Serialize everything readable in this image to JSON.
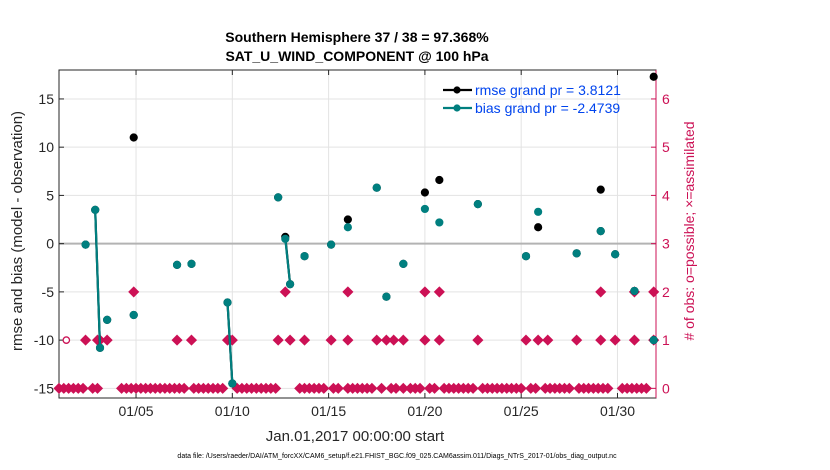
{
  "chart_data": {
    "type": "scatter",
    "title": "Southern Hemisphere 37 / 38 = 97.368%",
    "subtitle": "SAT_U_WIND_COMPONENT @ 100 hPa",
    "xlabel": "Jan.01,2017 00:00:00 start",
    "ylabel": "rmse and bias (model - observation)",
    "y2label": "# of obs: o=possible; ×=assimilated",
    "xlim": [
      1.0,
      32.0
    ],
    "ylim": [
      -16,
      18
    ],
    "y2lim": [
      -0.2,
      6.6
    ],
    "grid": true,
    "legend_position": "top-right",
    "xticks": [
      {
        "v": 5,
        "label": "01/05"
      },
      {
        "v": 10,
        "label": "01/10"
      },
      {
        "v": 15,
        "label": "01/15"
      },
      {
        "v": 20,
        "label": "01/20"
      },
      {
        "v": 25,
        "label": "01/25"
      },
      {
        "v": 30,
        "label": "01/30"
      }
    ],
    "yticks": [
      -15,
      -10,
      -5,
      0,
      5,
      10,
      15
    ],
    "y2ticks": [
      0,
      1,
      2,
      3,
      4,
      5,
      6
    ],
    "series": [
      {
        "name": "rmse",
        "legend": "rmse grand pr = 3.8121",
        "color": "#000000",
        "points": [
          [
            2.38,
            -0.1
          ],
          [
            2.88,
            3.5
          ],
          [
            3.13,
            -10.8
          ],
          [
            3.5,
            -7.9
          ],
          [
            4.88,
            11.0
          ],
          [
            4.88,
            -7.4
          ],
          [
            7.13,
            -2.2
          ],
          [
            7.88,
            -2.1
          ],
          [
            9.75,
            -6.1
          ],
          [
            10.0,
            -14.5
          ],
          [
            12.38,
            4.8
          ],
          [
            12.75,
            0.7
          ],
          [
            13.0,
            -4.2
          ],
          [
            13.75,
            -1.3
          ],
          [
            15.13,
            -0.1
          ],
          [
            16.0,
            2.5
          ],
          [
            17.5,
            5.8
          ],
          [
            18.0,
            -5.5
          ],
          [
            18.88,
            -2.1
          ],
          [
            20.0,
            5.3
          ],
          [
            20.75,
            6.6
          ],
          [
            22.75,
            4.1
          ],
          [
            25.25,
            -1.3
          ],
          [
            25.88,
            1.7
          ],
          [
            27.88,
            -1.0
          ],
          [
            29.13,
            5.6
          ],
          [
            29.13,
            1.3
          ],
          [
            29.88,
            -1.1
          ],
          [
            30.88,
            -4.9
          ],
          [
            31.88,
            17.3
          ],
          [
            31.88,
            -10.0
          ]
        ],
        "lines": [
          [
            [
              2.88,
              3.5
            ],
            [
              3.13,
              -10.8
            ]
          ],
          [
            [
              9.75,
              -6.1
            ],
            [
              10.0,
              -14.5
            ]
          ],
          [
            [
              12.75,
              0.7
            ],
            [
              13.0,
              -4.2
            ]
          ]
        ]
      },
      {
        "name": "bias",
        "legend": "bias grand pr = -2.4739",
        "color": "#007f7f",
        "points": [
          [
            2.38,
            -0.1
          ],
          [
            2.88,
            3.5
          ],
          [
            3.13,
            -10.8
          ],
          [
            3.5,
            -7.9
          ],
          [
            4.88,
            -7.4
          ],
          [
            7.13,
            -2.2
          ],
          [
            7.88,
            -2.1
          ],
          [
            9.75,
            -6.1
          ],
          [
            10.0,
            -14.5
          ],
          [
            12.38,
            4.8
          ],
          [
            12.75,
            0.5
          ],
          [
            13.0,
            -4.2
          ],
          [
            13.75,
            -1.3
          ],
          [
            15.13,
            -0.1
          ],
          [
            16.0,
            1.7
          ],
          [
            17.5,
            5.8
          ],
          [
            18.0,
            -5.5
          ],
          [
            18.88,
            -2.1
          ],
          [
            20.0,
            3.6
          ],
          [
            20.75,
            2.2
          ],
          [
            22.75,
            4.1
          ],
          [
            25.25,
            -1.3
          ],
          [
            25.88,
            3.3
          ],
          [
            27.88,
            -1.0
          ],
          [
            29.13,
            1.3
          ],
          [
            29.88,
            -1.1
          ],
          [
            30.88,
            -4.9
          ],
          [
            31.88,
            -10.0
          ]
        ],
        "lines": [
          [
            [
              2.88,
              3.5
            ],
            [
              3.13,
              -10.8
            ]
          ],
          [
            [
              9.75,
              -6.1
            ],
            [
              10.0,
              -14.5
            ]
          ],
          [
            [
              12.75,
              0.5
            ],
            [
              13.0,
              -4.2
            ]
          ]
        ]
      },
      {
        "name": "obs_possible",
        "marker": "o",
        "color": "#cc1155",
        "points": [
          [
            1.38,
            1
          ]
        ]
      },
      {
        "name": "obs_assimilated",
        "marker": "diamond",
        "color": "#cc1155",
        "points_zero": [
          1.0,
          1.25,
          1.5,
          1.75,
          2.0,
          2.25,
          2.75,
          3.0,
          4.25,
          4.5,
          4.75,
          5.0,
          5.25,
          5.5,
          5.75,
          6.0,
          6.25,
          6.5,
          6.75,
          7.0,
          7.25,
          7.5,
          8.0,
          8.25,
          8.5,
          8.75,
          9.0,
          9.25,
          9.5,
          10.25,
          10.5,
          10.75,
          11.0,
          11.25,
          11.5,
          11.75,
          12.0,
          12.25,
          13.5,
          13.75,
          14.0,
          14.25,
          14.5,
          14.75,
          15.25,
          15.5,
          16.0,
          16.25,
          16.5,
          16.75,
          17.0,
          17.25,
          17.75,
          18.25,
          18.5,
          18.88,
          19.25,
          19.5,
          19.75,
          20.25,
          20.5,
          21.0,
          21.25,
          21.5,
          21.75,
          22.0,
          22.25,
          22.5,
          23.0,
          23.25,
          23.5,
          23.75,
          24.0,
          24.25,
          24.5,
          24.75,
          25.0,
          25.5,
          25.75,
          26.25,
          26.5,
          26.75,
          27.0,
          27.25,
          27.5,
          28.0,
          28.25,
          28.5,
          28.75,
          29.0,
          29.25,
          29.5,
          30.25,
          30.5,
          30.75,
          31.0,
          31.25,
          31.5
        ],
        "points_one": [
          2.38,
          3.0,
          3.13,
          3.5,
          7.13,
          7.88,
          9.75,
          9.88,
          10.0,
          12.38,
          13.0,
          13.75,
          15.13,
          16.0,
          17.5,
          18.0,
          18.38,
          18.88,
          20.0,
          20.75,
          22.75,
          25.25,
          25.88,
          26.38,
          27.88,
          29.13,
          29.88,
          30.88,
          31.88
        ],
        "points_two": [
          4.88,
          12.75,
          16.0,
          20.0,
          20.75,
          29.13,
          30.88,
          31.88
        ]
      }
    ],
    "reference_line": {
      "y": 0,
      "color": "#b3b3b3"
    }
  },
  "footer": "data file: /Users/raeder/DAI/ATM_forcXX/CAM6_setup/f.e21.FHIST_BGC.f09_025.CAM6assim.011/Diags_NTrS_2017-01/obs_diag_output.nc"
}
